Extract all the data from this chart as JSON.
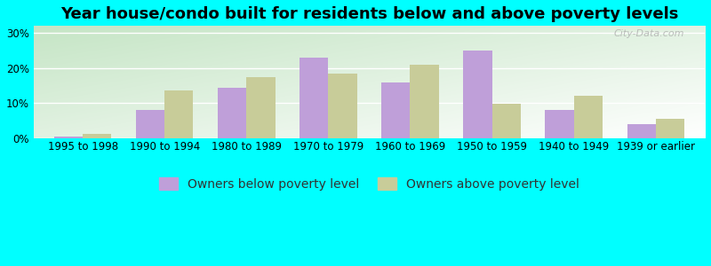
{
  "title": "Year house/condo built for residents below and above poverty levels",
  "categories": [
    "1995 to 1998",
    "1990 to 1994",
    "1980 to 1989",
    "1970 to 1979",
    "1960 to 1969",
    "1950 to 1959",
    "1940 to 1949",
    "1939 or earlier"
  ],
  "below_poverty": [
    0.5,
    8.0,
    14.5,
    23.0,
    16.0,
    25.0,
    8.0,
    4.0
  ],
  "above_poverty": [
    1.3,
    13.5,
    17.5,
    18.5,
    21.0,
    9.8,
    12.0,
    5.5
  ],
  "below_color": "#bf9fd9",
  "above_color": "#c8cc99",
  "background_outer": "#00ffff",
  "grad_top_left": "#c8e8c8",
  "grad_bottom_right": "#f0f8ee",
  "ylim": [
    0,
    32
  ],
  "yticks": [
    0,
    10,
    20,
    30
  ],
  "ytick_labels": [
    "0%",
    "10%",
    "20%",
    "30%"
  ],
  "legend_below": "Owners below poverty level",
  "legend_above": "Owners above poverty level",
  "bar_width": 0.35,
  "title_fontsize": 13,
  "tick_fontsize": 8.5,
  "legend_fontsize": 10,
  "watermark": "City-Data.com"
}
